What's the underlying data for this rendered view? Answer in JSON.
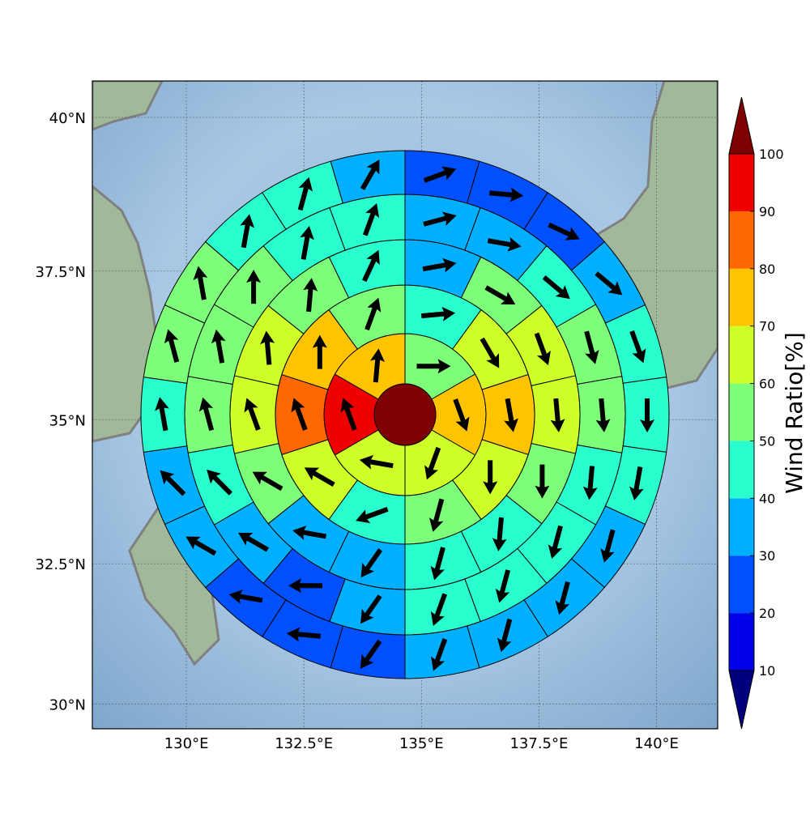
{
  "chart_data": {
    "type": "polar_sector_map",
    "projection": "mercator",
    "grid": true,
    "xlim": [
      128,
      141.3
    ],
    "ylim": [
      29.55,
      40.58
    ],
    "xticks": [
      {
        "value": 130,
        "label": "130°E"
      },
      {
        "value": 132.5,
        "label": "132.5°E"
      },
      {
        "value": 135,
        "label": "135°E"
      },
      {
        "value": 137.5,
        "label": "137.5°E"
      },
      {
        "value": 140,
        "label": "140°E"
      }
    ],
    "yticks": [
      {
        "value": 30,
        "label": "30°N"
      },
      {
        "value": 32.5,
        "label": "32.5°N"
      },
      {
        "value": 35,
        "label": "35°N"
      },
      {
        "value": 37.5,
        "label": "37.5°N"
      },
      {
        "value": 40,
        "label": "40°N"
      }
    ],
    "colorbar": {
      "label": "Wind Ratio[%]",
      "ticks": [
        10,
        20,
        30,
        40,
        50,
        60,
        70,
        80,
        90,
        100
      ],
      "colors": [
        "#0000e8",
        "#0050ff",
        "#00b0ff",
        "#29ffce",
        "#7dff7a",
        "#ceff29",
        "#ffc400",
        "#ff6800",
        "#ee0000"
      ],
      "under_color": "#00007f",
      "over_color": "#7f0000"
    },
    "center_value": 100,
    "rings": [
      {
        "values": [
          55,
          75,
          65,
          65,
          95,
          75
        ],
        "directions": [
          90,
          160,
          200,
          280,
          340,
          5
        ]
      },
      {
        "values": [
          45,
          65,
          75,
          65,
          55,
          45,
          65,
          85,
          75,
          55
        ],
        "directions": [
          85,
          150,
          170,
          180,
          195,
          250,
          300,
          340,
          0,
          20
        ]
      },
      {
        "values": [
          35,
          55,
          65,
          65,
          55,
          45,
          45,
          35,
          35,
          55,
          65,
          65,
          55,
          45
        ],
        "directions": [
          80,
          120,
          160,
          175,
          180,
          185,
          195,
          215,
          280,
          300,
          340,
          355,
          5,
          25
        ]
      },
      {
        "values": [
          35,
          35,
          45,
          55,
          55,
          45,
          45,
          45,
          45,
          35,
          25,
          35,
          45,
          55,
          55,
          55,
          45,
          45
        ],
        "directions": [
          75,
          100,
          130,
          165,
          175,
          185,
          195,
          195,
          200,
          215,
          270,
          300,
          315,
          345,
          350,
          0,
          10,
          20
        ]
      },
      {
        "values": [
          25,
          25,
          25,
          35,
          45,
          45,
          45,
          35,
          35,
          35,
          35,
          25,
          25,
          25,
          35,
          35,
          45,
          55,
          55,
          45,
          45,
          35
        ],
        "directions": [
          70,
          95,
          115,
          130,
          160,
          180,
          190,
          195,
          195,
          195,
          200,
          215,
          275,
          280,
          300,
          315,
          350,
          345,
          350,
          10,
          15,
          30
        ]
      }
    ]
  }
}
